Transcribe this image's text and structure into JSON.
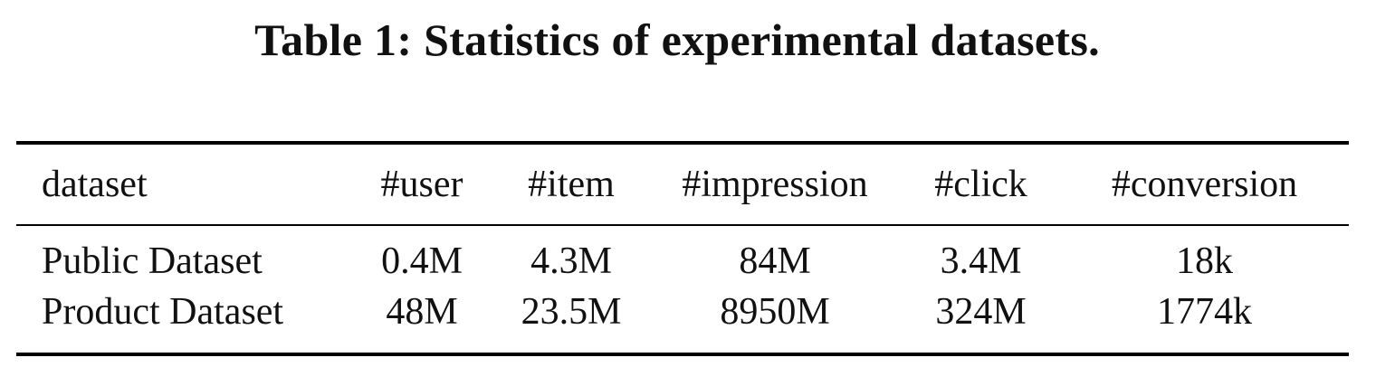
{
  "caption": "Table 1: Statistics of experimental datasets.",
  "table": {
    "headers": [
      "dataset",
      "#user",
      "#item",
      "#impression",
      "#click",
      "#conversion"
    ],
    "rows": [
      [
        "Public Dataset",
        "0.4M",
        "4.3M",
        "84M",
        "3.4M",
        "18k"
      ],
      [
        "Product Dataset",
        "48M",
        "23.5M",
        "8950M",
        "324M",
        "1774k"
      ]
    ]
  }
}
